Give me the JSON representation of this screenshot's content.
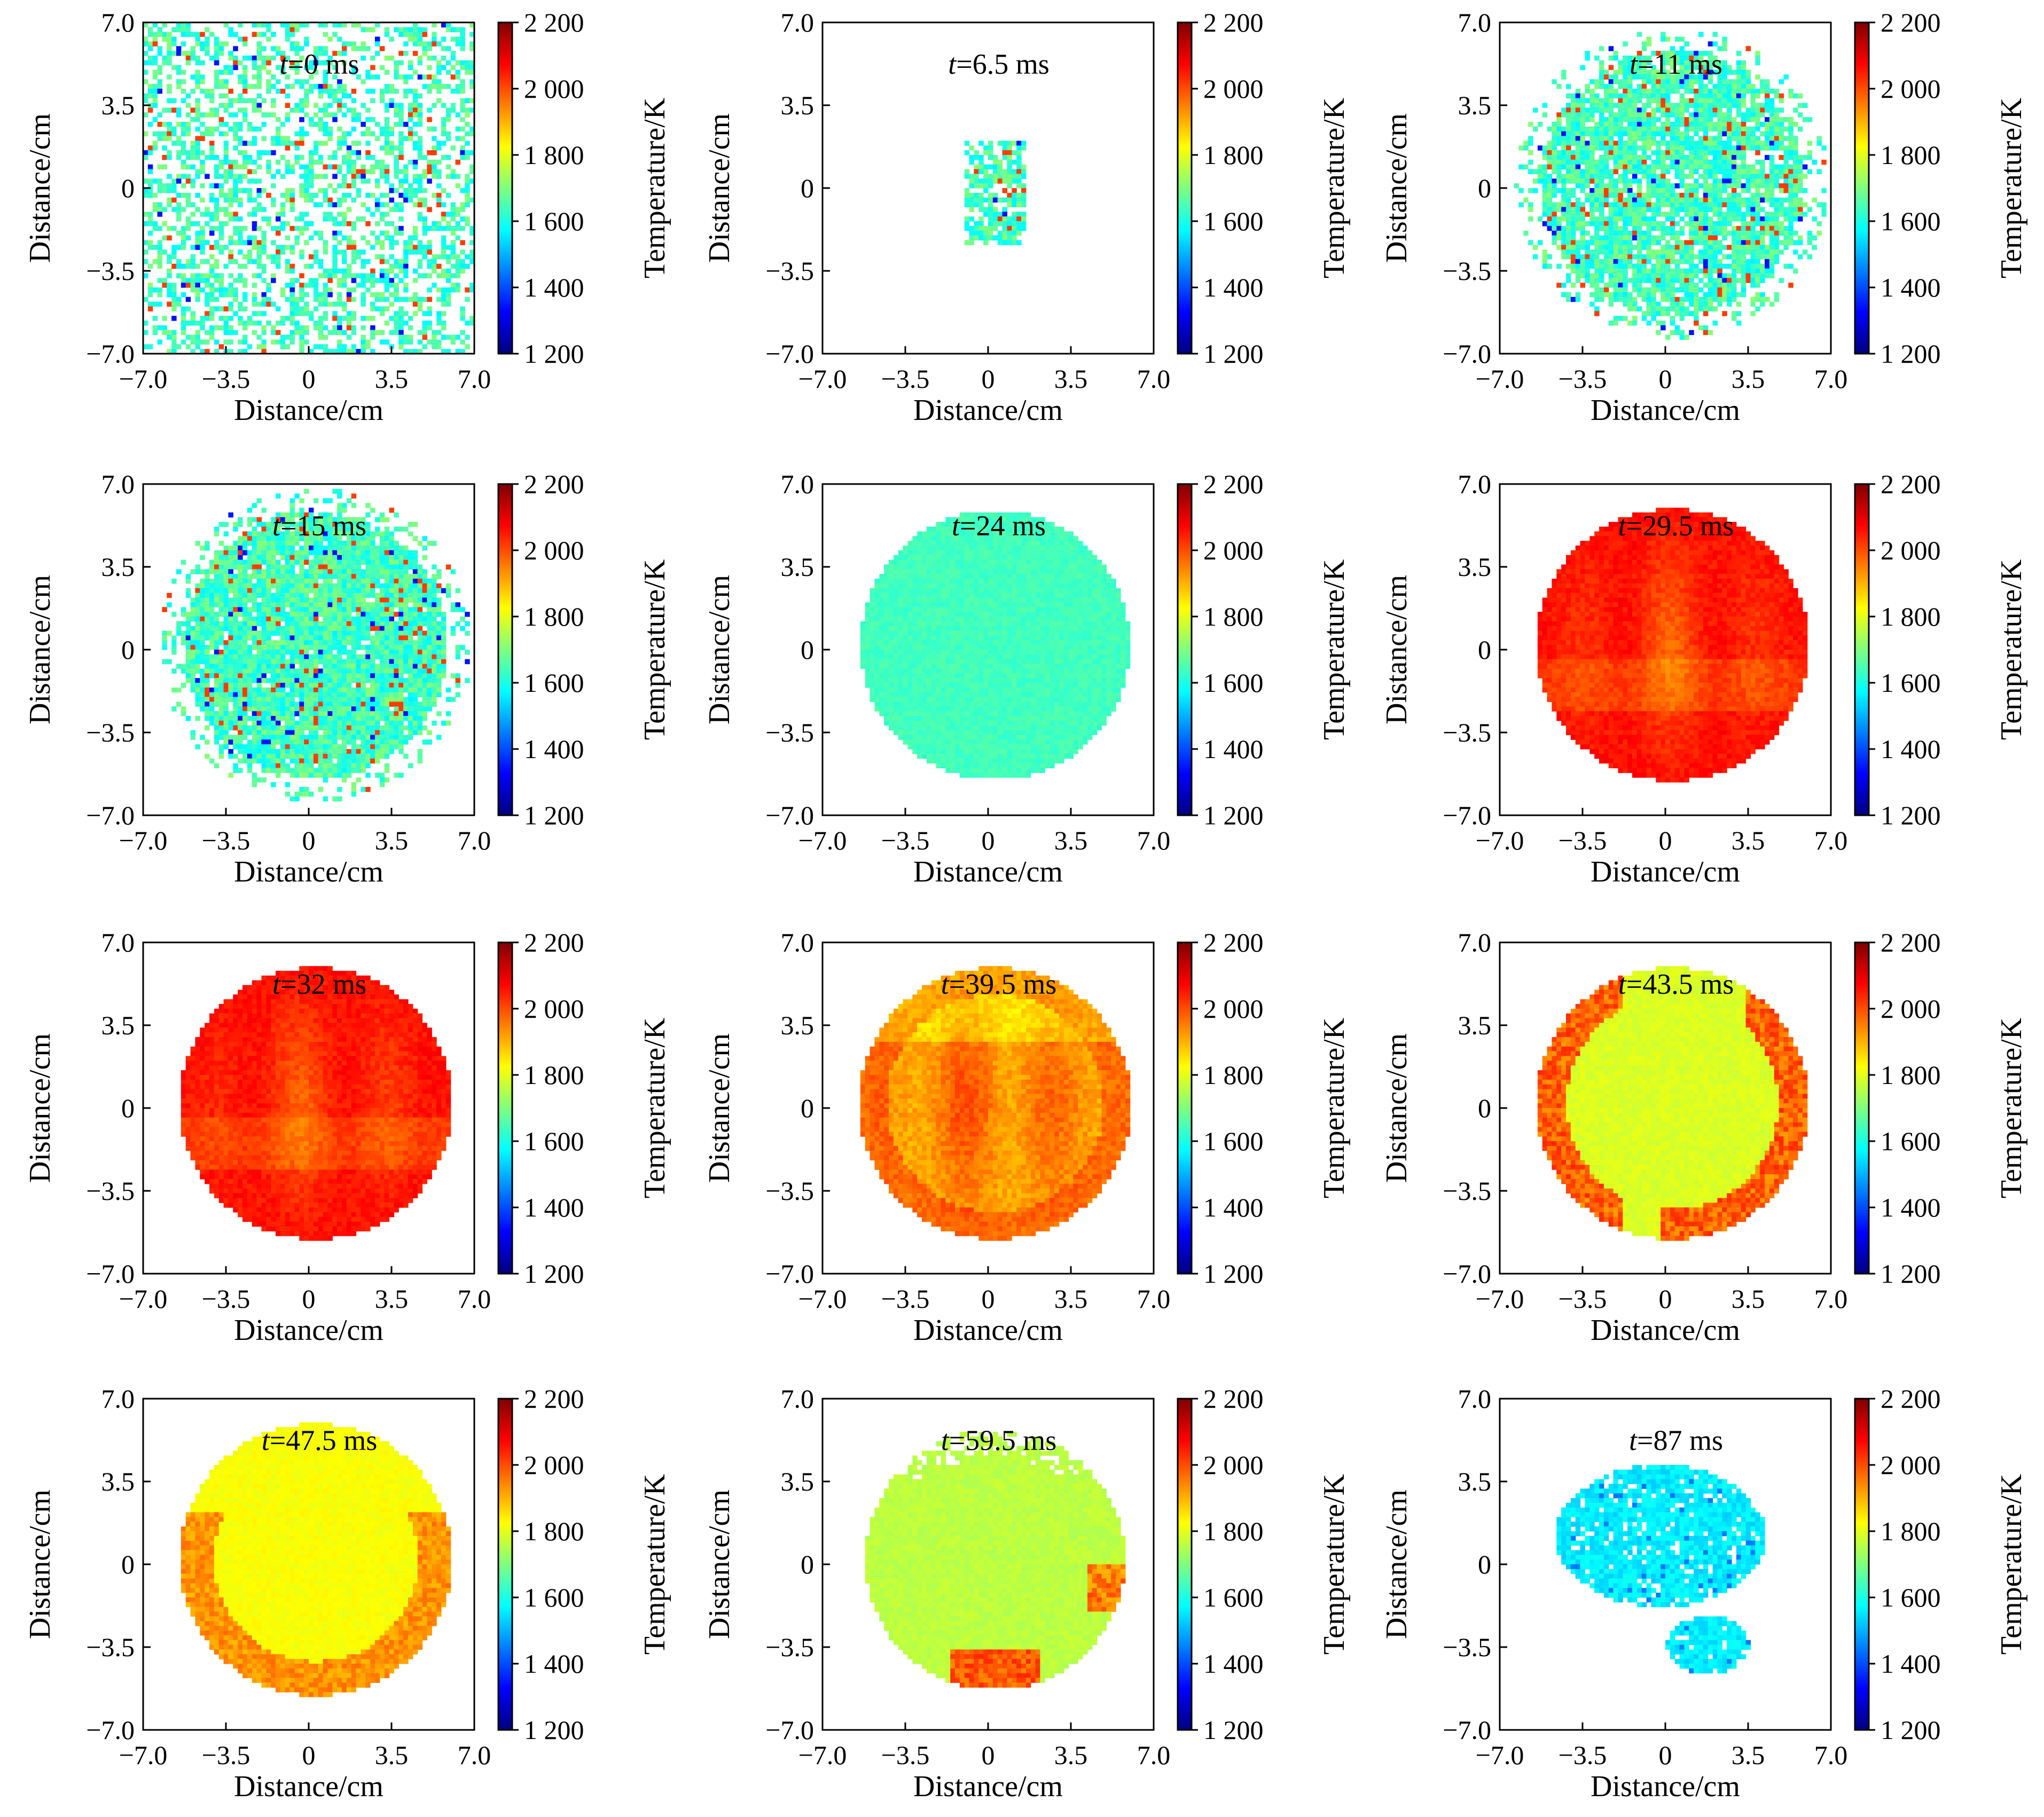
{
  "axis_label_x": "Distance/cm",
  "axis_label_y": "Distance/cm",
  "colorbar_label": "Temperature/K",
  "time_prefix": "t",
  "colors": {
    "colormap": [
      "#00007f",
      "#0000ff",
      "#007fff",
      "#00ffff",
      "#7fff7f",
      "#ffff00",
      "#ff7f00",
      "#ff0000",
      "#7f0000"
    ],
    "background": "#ffffff",
    "frame": "#000000"
  },
  "chart_data": [
    {
      "type": "heatmap",
      "time_label": "=0 ms",
      "time_ms": 0,
      "field": "sparse-noise",
      "mean_temperature_K": 1800,
      "xlim": [
        -7.0,
        7.0
      ],
      "ylim": [
        -7.0,
        7.0
      ],
      "xticks": [
        "−7.0",
        "−3.5",
        "0",
        "3.5",
        "7.0"
      ],
      "yticks": [
        "7.0",
        "3.5",
        "0",
        "−3.5",
        "−7.0"
      ],
      "colorbar": {
        "range": [
          1200,
          2200
        ],
        "ticks": [
          "2 200",
          "2 000",
          "1 800",
          "1 600",
          "1 400",
          "1 200"
        ]
      }
    },
    {
      "type": "heatmap",
      "time_label": "=6.5 ms",
      "time_ms": 6.5,
      "field": "small-kernel",
      "mean_temperature_K": 1650,
      "xlim": [
        -7.0,
        7.0
      ],
      "ylim": [
        -7.0,
        7.0
      ],
      "xticks": [
        "−7.0",
        "−3.5",
        "0",
        "3.5",
        "7.0"
      ],
      "yticks": [
        "7.0",
        "3.5",
        "0",
        "−3.5",
        "−7.0"
      ],
      "colorbar": {
        "range": [
          1200,
          2200
        ],
        "ticks": [
          "2 200",
          "2 000",
          "1 800",
          "1 600",
          "1 400",
          "1 200"
        ]
      }
    },
    {
      "type": "heatmap",
      "time_label": "=11 ms",
      "time_ms": 11,
      "field": "speckled-disc",
      "mean_temperature_K": 1620,
      "xlim": [
        -7.0,
        7.0
      ],
      "ylim": [
        -7.0,
        7.0
      ],
      "xticks": [
        "−7.0",
        "−3.5",
        "0",
        "3.5",
        "7.0"
      ],
      "yticks": [
        "7.0",
        "3.5",
        "0",
        "−3.5",
        "−7.0"
      ],
      "colorbar": {
        "range": [
          1200,
          2200
        ],
        "ticks": [
          "2 200",
          "2 000",
          "1 800",
          "1 600",
          "1 400",
          "1 200"
        ]
      }
    },
    {
      "type": "heatmap",
      "time_label": "=15 ms",
      "time_ms": 15,
      "field": "speckled-disc",
      "mean_temperature_K": 1600,
      "xlim": [
        -7.0,
        7.0
      ],
      "ylim": [
        -7.0,
        7.0
      ],
      "xticks": [
        "−7.0",
        "−3.5",
        "0",
        "3.5",
        "7.0"
      ],
      "yticks": [
        "7.0",
        "3.5",
        "0",
        "−3.5",
        "−7.0"
      ],
      "colorbar": {
        "range": [
          1200,
          2200
        ],
        "ticks": [
          "2 200",
          "2 000",
          "1 800",
          "1 600",
          "1 400",
          "1 200"
        ]
      }
    },
    {
      "type": "heatmap",
      "time_label": "=24 ms",
      "time_ms": 24,
      "field": "uniform-disc",
      "mean_temperature_K": 1640,
      "xlim": [
        -7.0,
        7.0
      ],
      "ylim": [
        -7.0,
        7.0
      ],
      "xticks": [
        "−7.0",
        "−3.5",
        "0",
        "3.5",
        "7.0"
      ],
      "yticks": [
        "7.0",
        "3.5",
        "0",
        "−3.5",
        "−7.0"
      ],
      "colorbar": {
        "range": [
          1200,
          2200
        ],
        "ticks": [
          "2 200",
          "2 000",
          "1 800",
          "1 600",
          "1 400",
          "1 200"
        ]
      }
    },
    {
      "type": "heatmap",
      "time_label": "=29.5 ms",
      "time_ms": 29.5,
      "field": "hot-disc",
      "mean_temperature_K": 2050,
      "xlim": [
        -7.0,
        7.0
      ],
      "ylim": [
        -7.0,
        7.0
      ],
      "xticks": [
        "−7.0",
        "−3.5",
        "0",
        "3.5",
        "7.0"
      ],
      "yticks": [
        "7.0",
        "3.5",
        "0",
        "−3.5",
        "−7.0"
      ],
      "colorbar": {
        "range": [
          1200,
          2200
        ],
        "ticks": [
          "2 200",
          "2 000",
          "1 800",
          "1 600",
          "1 400",
          "1 200"
        ]
      }
    },
    {
      "type": "heatmap",
      "time_label": "=32 ms",
      "time_ms": 32,
      "field": "hot-disc",
      "mean_temperature_K": 1990,
      "xlim": [
        -7.0,
        7.0
      ],
      "ylim": [
        -7.0,
        7.0
      ],
      "xticks": [
        "−7.0",
        "−3.5",
        "0",
        "3.5",
        "7.0"
      ],
      "yticks": [
        "7.0",
        "3.5",
        "0",
        "−3.5",
        "−7.0"
      ],
      "colorbar": {
        "range": [
          1200,
          2200
        ],
        "ticks": [
          "2 200",
          "2 000",
          "1 800",
          "1 600",
          "1 400",
          "1 200"
        ]
      }
    },
    {
      "type": "heatmap",
      "time_label": "=39.5 ms",
      "time_ms": 39.5,
      "field": "warm-disc",
      "mean_temperature_K": 1910,
      "xlim": [
        -7.0,
        7.0
      ],
      "ylim": [
        -7.0,
        7.0
      ],
      "xticks": [
        "−7.0",
        "−3.5",
        "0",
        "3.5",
        "7.0"
      ],
      "yticks": [
        "7.0",
        "3.5",
        "0",
        "−3.5",
        "−7.0"
      ],
      "colorbar": {
        "range": [
          1200,
          2200
        ],
        "ticks": [
          "2 200",
          "2 000",
          "1 800",
          "1 600",
          "1 400",
          "1 200"
        ]
      }
    },
    {
      "type": "heatmap",
      "time_label": "=43.5 ms",
      "time_ms": 43.5,
      "field": "rim-hot-disc",
      "mean_temperature_K": 1770,
      "xlim": [
        -7.0,
        7.0
      ],
      "ylim": [
        -7.0,
        7.0
      ],
      "xticks": [
        "−7.0",
        "−3.5",
        "0",
        "3.5",
        "7.0"
      ],
      "yticks": [
        "7.0",
        "3.5",
        "0",
        "−3.5",
        "−7.0"
      ],
      "colorbar": {
        "range": [
          1200,
          2200
        ],
        "ticks": [
          "2 200",
          "2 000",
          "1 800",
          "1 600",
          "1 400",
          "1 200"
        ]
      }
    },
    {
      "type": "heatmap",
      "time_label": "=47.5 ms",
      "time_ms": 47.5,
      "field": "rim-warm-disc",
      "mean_temperature_K": 1810,
      "xlim": [
        -7.0,
        7.0
      ],
      "ylim": [
        -7.0,
        7.0
      ],
      "xticks": [
        "−7.0",
        "−3.5",
        "0",
        "3.5",
        "7.0"
      ],
      "yticks": [
        "7.0",
        "3.5",
        "0",
        "−3.5",
        "−7.0"
      ],
      "colorbar": {
        "range": [
          1200,
          2200
        ],
        "ticks": [
          "2 200",
          "2 000",
          "1 800",
          "1 600",
          "1 400",
          "1 200"
        ]
      }
    },
    {
      "type": "heatmap",
      "time_label": "=59.5 ms",
      "time_ms": 59.5,
      "field": "fading-disc",
      "mean_temperature_K": 1740,
      "xlim": [
        -7.0,
        7.0
      ],
      "ylim": [
        -7.0,
        7.0
      ],
      "xticks": [
        "−7.0",
        "−3.5",
        "0",
        "3.5",
        "7.0"
      ],
      "yticks": [
        "7.0",
        "3.5",
        "0",
        "−3.5",
        "−7.0"
      ],
      "colorbar": {
        "range": [
          1200,
          2200
        ],
        "ticks": [
          "2 200",
          "2 000",
          "1 800",
          "1 600",
          "1 400",
          "1 200"
        ]
      }
    },
    {
      "type": "heatmap",
      "time_label": "=87 ms",
      "time_ms": 87,
      "field": "residual-blob",
      "mean_temperature_K": 1560,
      "xlim": [
        -7.0,
        7.0
      ],
      "ylim": [
        -7.0,
        7.0
      ],
      "xticks": [
        "−7.0",
        "−3.5",
        "0",
        "3.5",
        "7.0"
      ],
      "yticks": [
        "7.0",
        "3.5",
        "0",
        "−3.5",
        "−7.0"
      ],
      "colorbar": {
        "range": [
          1200,
          2200
        ],
        "ticks": [
          "2 200",
          "2 000",
          "1 800",
          "1 600",
          "1 400",
          "1 200"
        ]
      }
    }
  ]
}
